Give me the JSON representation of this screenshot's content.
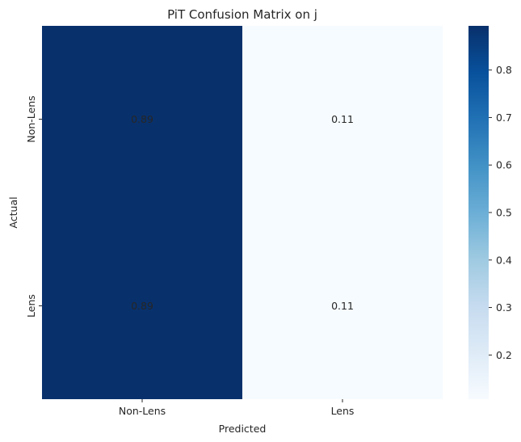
{
  "chart_data": {
    "type": "heatmap",
    "title": "PiT Confusion Matrix on j",
    "xlabel": "Predicted",
    "ylabel": "Actual",
    "x_categories": [
      "Non-Lens",
      "Lens"
    ],
    "y_categories": [
      "Non-Lens",
      "Lens"
    ],
    "values": [
      [
        0.89,
        0.11
      ],
      [
        0.89,
        0.11
      ]
    ],
    "value_labels": [
      [
        "0.89",
        "0.11"
      ],
      [
        "0.89",
        "0.11"
      ]
    ],
    "colormap": "Blues",
    "colorbar": {
      "range": [
        0.107,
        0.893
      ],
      "ticks": [
        0.2,
        0.3,
        0.4,
        0.5,
        0.6,
        0.7,
        0.8
      ],
      "tick_labels": [
        "0.2",
        "0.3",
        "0.4",
        "0.5",
        "0.6",
        "0.7",
        "0.8"
      ]
    },
    "colors": {
      "high": "#08306b",
      "low": "#f7fbff",
      "high_text": "#ffffff",
      "low_text": "#262626"
    }
  }
}
